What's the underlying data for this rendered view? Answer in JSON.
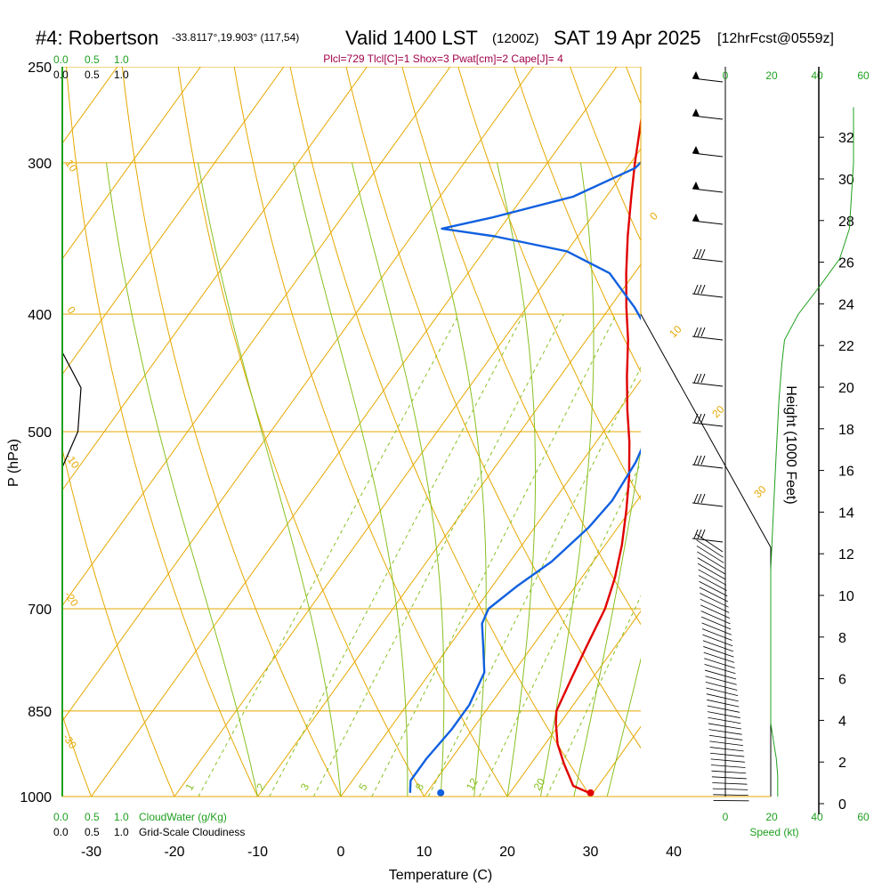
{
  "header": {
    "station": "#4: Robertson",
    "coords": "-33.8117°,19.903° (117,54)",
    "valid_prefix": "Valid 1400 LST",
    "valid_utc": "(1200Z)",
    "valid_date": "SAT 19 Apr 2025",
    "forecast": "[12hrFcst@0559z]",
    "indices": "Plcl=729 Tlcl[C]=1 Shox=3 Pwat[cm]=2 Cape[J]= 4"
  },
  "cloud_scale": {
    "top_green": [
      "0.0",
      "0.5",
      "1.0"
    ],
    "top_black": [
      "0.0",
      "0.5",
      "1.0"
    ],
    "bottom_green": [
      "0.0",
      "0.5",
      "1.0"
    ],
    "bottom_black": [
      "0.0",
      "0.5",
      "1.0"
    ],
    "cloudwater_label": "CloudWater (g/Kg)",
    "cloudiness_label": "Grid-Scale Cloudiness"
  },
  "wind_speed_axis": {
    "ticks": [
      "0",
      "20",
      "40",
      "60"
    ],
    "label": "Speed (kt)"
  },
  "colors": {
    "temperature": "#e00000",
    "dewpoint": "#1060e0",
    "isotherm": "#e6a800",
    "dry_adiabat": "#e6a800",
    "moist_adiabat": "#88c020",
    "mixing_ratio": "#88c020",
    "cloud": "#000000",
    "green_text": "#20a020",
    "indices_text": "#a0004a"
  },
  "chart_data": {
    "type": "line",
    "title": "",
    "xlabel": "Temperature (C)",
    "ylabel": "P (hPa)",
    "y2label": "Height (1000 Feet)",
    "xlim": [
      -35,
      35
    ],
    "ylim": [
      1000,
      250
    ],
    "x_ticks": [
      "-30",
      "-20",
      "-10",
      "0",
      "10",
      "20",
      "30",
      "40"
    ],
    "y_ticks": [
      "250",
      "300",
      "400",
      "500",
      "700",
      "850",
      "1000"
    ],
    "height_ticks": [
      "0",
      "2",
      "4",
      "6",
      "8",
      "10",
      "12",
      "14",
      "16",
      "18",
      "20",
      "22",
      "24",
      "26",
      "28",
      "30",
      "32"
    ],
    "isotherm_labels": [
      "0",
      "10",
      "20",
      "30"
    ],
    "dry_adiabat_labels": [
      "10",
      "0",
      "-10",
      "-20",
      "-30"
    ],
    "mixing_ratio_labels": [
      "1",
      "2",
      "3",
      "5",
      "8",
      "12",
      "20"
    ],
    "series": [
      {
        "name": "",
        "values": [
          [
            29.5,
            993
          ],
          [
            27,
            980
          ],
          [
            24,
            940
          ],
          [
            21.5,
            905
          ],
          [
            19.5,
            870
          ],
          [
            18.5,
            850
          ],
          [
            17.5,
            800
          ],
          [
            16.5,
            750
          ],
          [
            15.5,
            700
          ],
          [
            14,
            660
          ],
          [
            12,
            620
          ],
          [
            9.5,
            580
          ],
          [
            7,
            545
          ],
          [
            4,
            510
          ],
          [
            1,
            480
          ],
          [
            -2,
            450
          ],
          [
            -5,
            420
          ],
          [
            -8,
            395
          ],
          [
            -11,
            370
          ],
          [
            -14,
            345
          ],
          [
            -17,
            320
          ],
          [
            -19.5,
            300
          ],
          [
            -22,
            280
          ],
          [
            -24,
            265
          ]
        ]
      },
      {
        "name": "",
        "values": [
          [
            8,
            993
          ],
          [
            7,
            970
          ],
          [
            7,
            930
          ],
          [
            7.5,
            880
          ],
          [
            7.5,
            840
          ],
          [
            6.5,
            790
          ],
          [
            4,
            750
          ],
          [
            2,
            720
          ],
          [
            1.5,
            700
          ],
          [
            3,
            670
          ],
          [
            5,
            640
          ],
          [
            6.5,
            600
          ],
          [
            7,
            570
          ],
          [
            6.5,
            530
          ],
          [
            5.5,
            500
          ],
          [
            4,
            470
          ],
          [
            2,
            445
          ],
          [
            -2,
            420
          ],
          [
            -7,
            395
          ],
          [
            -13,
            370
          ],
          [
            -20,
            355
          ],
          [
            -30,
            345
          ],
          [
            -37,
            340
          ],
          [
            -32,
            333
          ],
          [
            -24,
            320
          ],
          [
            -19,
            303
          ],
          [
            -18,
            285
          ],
          [
            -18,
            265
          ]
        ]
      }
    ],
    "surface_points": [
      {
        "name": "",
        "x": 30,
        "p": 993
      },
      {
        "name": "",
        "x": 12,
        "p": 993
      }
    ],
    "cloud_profile": [
      [
        0.0,
        535
      ],
      [
        0.25,
        500
      ],
      [
        0.3,
        460
      ],
      [
        0.0,
        430
      ]
    ],
    "height_profile": [
      [
        5,
        1000
      ],
      [
        5,
        960
      ],
      [
        4,
        930
      ],
      [
        2,
        900
      ],
      [
        0,
        870
      ],
      [
        0,
        650
      ],
      [
        2,
        580
      ],
      [
        4,
        520
      ],
      [
        6,
        470
      ],
      [
        8,
        440
      ],
      [
        10,
        420
      ],
      [
        20,
        400
      ],
      [
        35,
        380
      ],
      [
        50,
        360
      ],
      [
        57,
        340
      ],
      [
        60,
        300
      ],
      [
        60,
        270
      ]
    ]
  }
}
